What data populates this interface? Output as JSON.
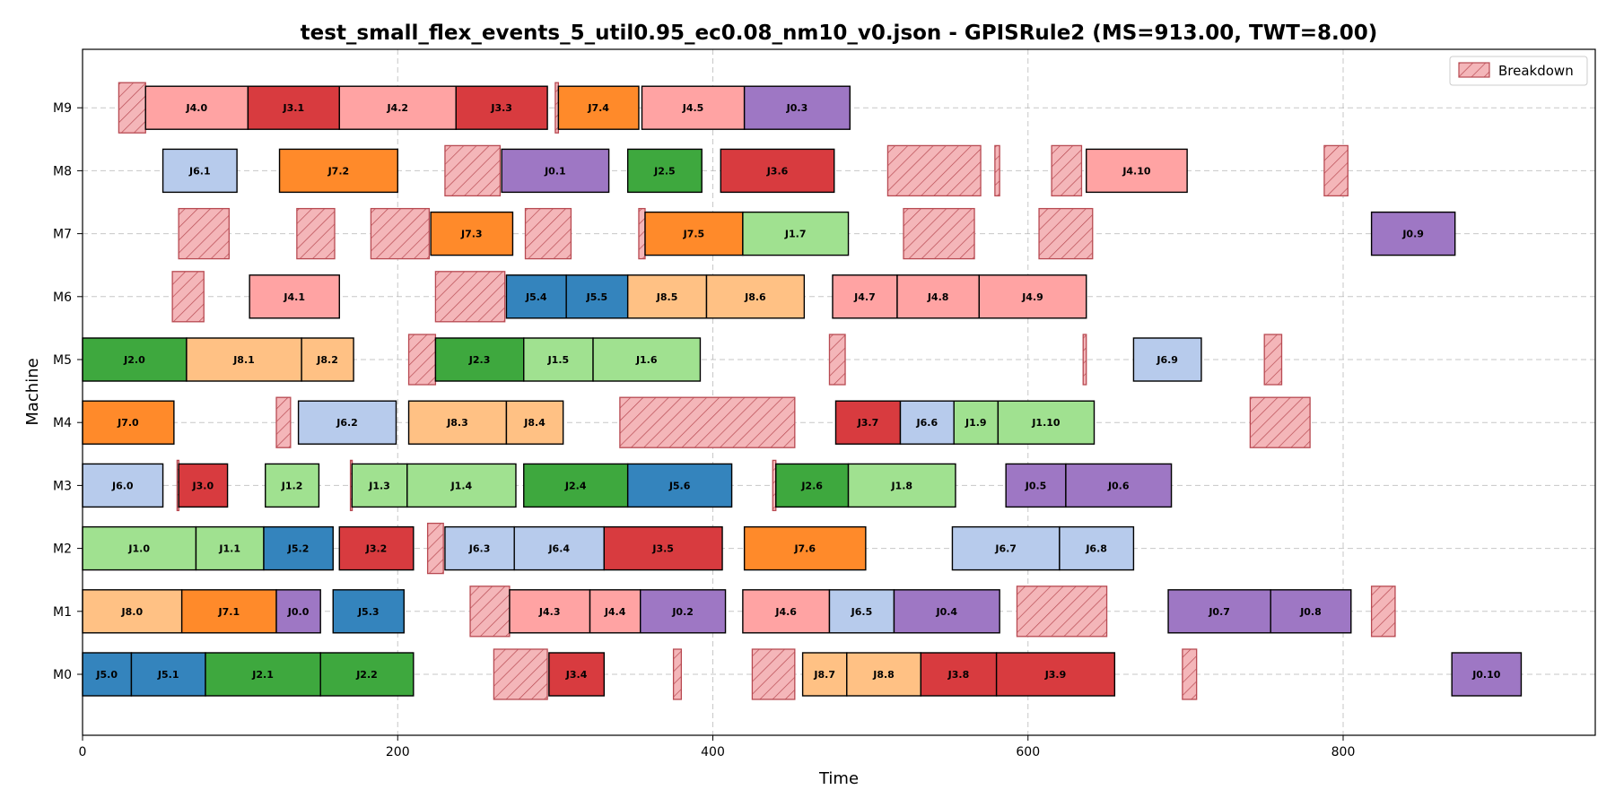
{
  "chart_data": {
    "type": "gantt",
    "title": "test_small_flex_events_5_util0.95_ec0.08_nm10_v0.json - GPISRule2 (MS=913.00, TWT=8.00)",
    "xlabel": "Time",
    "ylabel": "Machine",
    "xlim": [
      0,
      960
    ],
    "xticks": [
      0,
      200,
      400,
      600,
      800
    ],
    "machines": [
      "M0",
      "M1",
      "M2",
      "M3",
      "M4",
      "M5",
      "M6",
      "M7",
      "M8",
      "M9"
    ],
    "grid": true,
    "legend": {
      "position": "top-right",
      "entries": [
        "Breakdown"
      ]
    },
    "job_colors": {
      "J0": "#9e77c4",
      "J1": "#a0e190",
      "J2": "#3ea83e",
      "J3": "#d83b3f",
      "J4": "#ffa3a3",
      "J5": "#3484bd",
      "J6": "#b7cbec",
      "J7": "#ff8a2a",
      "J8": "#ffc184"
    },
    "breakdown_fill": "#f4b6b9",
    "breakdown_edge": "#b84a52",
    "operations": [
      {
        "m": 0,
        "label": "J5.0",
        "job": "J5",
        "start": 0,
        "end": 31
      },
      {
        "m": 0,
        "label": "J5.1",
        "job": "J5",
        "start": 31,
        "end": 78
      },
      {
        "m": 0,
        "label": "J2.1",
        "job": "J2",
        "start": 78,
        "end": 151
      },
      {
        "m": 0,
        "label": "J2.2",
        "job": "J2",
        "start": 151,
        "end": 210
      },
      {
        "m": 0,
        "label": "J3.4",
        "job": "J3",
        "start": 296,
        "end": 331
      },
      {
        "m": 0,
        "label": "J8.7",
        "job": "J8",
        "start": 457,
        "end": 485
      },
      {
        "m": 0,
        "label": "J8.8",
        "job": "J8",
        "start": 485,
        "end": 532
      },
      {
        "m": 0,
        "label": "J3.8",
        "job": "J3",
        "start": 532,
        "end": 580
      },
      {
        "m": 0,
        "label": "J3.9",
        "job": "J3",
        "start": 580,
        "end": 655
      },
      {
        "m": 0,
        "label": "J0.10",
        "job": "J0",
        "start": 869,
        "end": 913
      },
      {
        "m": 1,
        "label": "J8.0",
        "job": "J8",
        "start": 0,
        "end": 63
      },
      {
        "m": 1,
        "label": "J7.1",
        "job": "J7",
        "start": 63,
        "end": 123
      },
      {
        "m": 1,
        "label": "J0.0",
        "job": "J0",
        "start": 123,
        "end": 151
      },
      {
        "m": 1,
        "label": "J5.3",
        "job": "J5",
        "start": 159,
        "end": 204
      },
      {
        "m": 1,
        "label": "J4.3",
        "job": "J4",
        "start": 271,
        "end": 322
      },
      {
        "m": 1,
        "label": "J4.4",
        "job": "J4",
        "start": 322,
        "end": 354
      },
      {
        "m": 1,
        "label": "J0.2",
        "job": "J0",
        "start": 354,
        "end": 408
      },
      {
        "m": 1,
        "label": "J4.6",
        "job": "J4",
        "start": 419,
        "end": 474
      },
      {
        "m": 1,
        "label": "J6.5",
        "job": "J6",
        "start": 474,
        "end": 515
      },
      {
        "m": 1,
        "label": "J0.4",
        "job": "J0",
        "start": 515,
        "end": 582
      },
      {
        "m": 1,
        "label": "J0.7",
        "job": "J0",
        "start": 689,
        "end": 754
      },
      {
        "m": 1,
        "label": "J0.8",
        "job": "J0",
        "start": 754,
        "end": 805
      },
      {
        "m": 2,
        "label": "J1.0",
        "job": "J1",
        "start": 0,
        "end": 72
      },
      {
        "m": 2,
        "label": "J1.1",
        "job": "J1",
        "start": 72,
        "end": 115
      },
      {
        "m": 2,
        "label": "J5.2",
        "job": "J5",
        "start": 115,
        "end": 159
      },
      {
        "m": 2,
        "label": "J3.2",
        "job": "J3",
        "start": 163,
        "end": 210
      },
      {
        "m": 2,
        "label": "J6.3",
        "job": "J6",
        "start": 230,
        "end": 274
      },
      {
        "m": 2,
        "label": "J6.4",
        "job": "J6",
        "start": 274,
        "end": 331
      },
      {
        "m": 2,
        "label": "J3.5",
        "job": "J3",
        "start": 331,
        "end": 406
      },
      {
        "m": 2,
        "label": "J7.6",
        "job": "J7",
        "start": 420,
        "end": 497
      },
      {
        "m": 2,
        "label": "J6.7",
        "job": "J6",
        "start": 552,
        "end": 620
      },
      {
        "m": 2,
        "label": "J6.8",
        "job": "J6",
        "start": 620,
        "end": 667
      },
      {
        "m": 3,
        "label": "J6.0",
        "job": "J6",
        "start": 0,
        "end": 51
      },
      {
        "m": 3,
        "label": "J3.0",
        "job": "J3",
        "start": 61,
        "end": 92
      },
      {
        "m": 3,
        "label": "J1.2",
        "job": "J1",
        "start": 116,
        "end": 150
      },
      {
        "m": 3,
        "label": "J1.3",
        "job": "J1",
        "start": 171,
        "end": 206
      },
      {
        "m": 3,
        "label": "J1.4",
        "job": "J1",
        "start": 206,
        "end": 275
      },
      {
        "m": 3,
        "label": "J2.4",
        "job": "J2",
        "start": 280,
        "end": 346
      },
      {
        "m": 3,
        "label": "J5.6",
        "job": "J5",
        "start": 346,
        "end": 412
      },
      {
        "m": 3,
        "label": "J2.6",
        "job": "J2",
        "start": 440,
        "end": 486
      },
      {
        "m": 3,
        "label": "J1.8",
        "job": "J1",
        "start": 486,
        "end": 554
      },
      {
        "m": 3,
        "label": "J0.5",
        "job": "J0",
        "start": 586,
        "end": 624
      },
      {
        "m": 3,
        "label": "J0.6",
        "job": "J0",
        "start": 624,
        "end": 691
      },
      {
        "m": 4,
        "label": "J7.0",
        "job": "J7",
        "start": 0,
        "end": 58
      },
      {
        "m": 4,
        "label": "J6.2",
        "job": "J6",
        "start": 137,
        "end": 199
      },
      {
        "m": 4,
        "label": "J8.3",
        "job": "J8",
        "start": 207,
        "end": 269
      },
      {
        "m": 4,
        "label": "J8.4",
        "job": "J8",
        "start": 269,
        "end": 305
      },
      {
        "m": 4,
        "label": "J3.7",
        "job": "J3",
        "start": 478,
        "end": 519
      },
      {
        "m": 4,
        "label": "J6.6",
        "job": "J6",
        "start": 519,
        "end": 553
      },
      {
        "m": 4,
        "label": "J1.9",
        "job": "J1",
        "start": 553,
        "end": 581
      },
      {
        "m": 4,
        "label": "J1.10",
        "job": "J1",
        "start": 581,
        "end": 642
      },
      {
        "m": 5,
        "label": "J2.0",
        "job": "J2",
        "start": 0,
        "end": 66
      },
      {
        "m": 5,
        "label": "J8.1",
        "job": "J8",
        "start": 66,
        "end": 139
      },
      {
        "m": 5,
        "label": "J8.2",
        "job": "J8",
        "start": 139,
        "end": 172
      },
      {
        "m": 5,
        "label": "J2.3",
        "job": "J2",
        "start": 224,
        "end": 280
      },
      {
        "m": 5,
        "label": "J1.5",
        "job": "J1",
        "start": 280,
        "end": 324
      },
      {
        "m": 5,
        "label": "J1.6",
        "job": "J1",
        "start": 324,
        "end": 392
      },
      {
        "m": 5,
        "label": "J6.9",
        "job": "J6",
        "start": 667,
        "end": 710
      },
      {
        "m": 6,
        "label": "J4.1",
        "job": "J4",
        "start": 106,
        "end": 163
      },
      {
        "m": 6,
        "label": "J5.4",
        "job": "J5",
        "start": 269,
        "end": 307
      },
      {
        "m": 6,
        "label": "J5.5",
        "job": "J5",
        "start": 307,
        "end": 346
      },
      {
        "m": 6,
        "label": "J8.5",
        "job": "J8",
        "start": 346,
        "end": 396
      },
      {
        "m": 6,
        "label": "J8.6",
        "job": "J8",
        "start": 396,
        "end": 458
      },
      {
        "m": 6,
        "label": "J4.7",
        "job": "J4",
        "start": 476,
        "end": 517
      },
      {
        "m": 6,
        "label": "J4.8",
        "job": "J4",
        "start": 517,
        "end": 569
      },
      {
        "m": 6,
        "label": "J4.9",
        "job": "J4",
        "start": 569,
        "end": 637
      },
      {
        "m": 7,
        "label": "J7.3",
        "job": "J7",
        "start": 221,
        "end": 273
      },
      {
        "m": 7,
        "label": "J7.5",
        "job": "J7",
        "start": 357,
        "end": 419
      },
      {
        "m": 7,
        "label": "J1.7",
        "job": "J1",
        "start": 419,
        "end": 486
      },
      {
        "m": 7,
        "label": "J0.9",
        "job": "J0",
        "start": 818,
        "end": 871
      },
      {
        "m": 8,
        "label": "J6.1",
        "job": "J6",
        "start": 51,
        "end": 98
      },
      {
        "m": 8,
        "label": "J7.2",
        "job": "J7",
        "start": 125,
        "end": 200
      },
      {
        "m": 8,
        "label": "J0.1",
        "job": "J0",
        "start": 266,
        "end": 334
      },
      {
        "m": 8,
        "label": "J2.5",
        "job": "J2",
        "start": 346,
        "end": 393
      },
      {
        "m": 8,
        "label": "J3.6",
        "job": "J3",
        "start": 405,
        "end": 477
      },
      {
        "m": 8,
        "label": "J4.10",
        "job": "J4",
        "start": 637,
        "end": 701
      },
      {
        "m": 9,
        "label": "J4.0",
        "job": "J4",
        "start": 40,
        "end": 105
      },
      {
        "m": 9,
        "label": "J3.1",
        "job": "J3",
        "start": 105,
        "end": 163
      },
      {
        "m": 9,
        "label": "J4.2",
        "job": "J4",
        "start": 163,
        "end": 237
      },
      {
        "m": 9,
        "label": "J3.3",
        "job": "J3",
        "start": 237,
        "end": 295
      },
      {
        "m": 9,
        "label": "J7.4",
        "job": "J7",
        "start": 302,
        "end": 353
      },
      {
        "m": 9,
        "label": "J4.5",
        "job": "J4",
        "start": 355,
        "end": 420
      },
      {
        "m": 9,
        "label": "J0.3",
        "job": "J0",
        "start": 420,
        "end": 487
      }
    ],
    "breakdowns": [
      {
        "m": 0,
        "start": 261,
        "end": 295
      },
      {
        "m": 0,
        "start": 375,
        "end": 380
      },
      {
        "m": 0,
        "start": 425,
        "end": 452
      },
      {
        "m": 0,
        "start": 698,
        "end": 707
      },
      {
        "m": 1,
        "start": 246,
        "end": 271
      },
      {
        "m": 1,
        "start": 593,
        "end": 650
      },
      {
        "m": 1,
        "start": 818,
        "end": 833
      },
      {
        "m": 2,
        "start": 219,
        "end": 229
      },
      {
        "m": 3,
        "start": 60,
        "end": 61
      },
      {
        "m": 3,
        "start": 170,
        "end": 171
      },
      {
        "m": 3,
        "start": 438,
        "end": 440
      },
      {
        "m": 4,
        "start": 123,
        "end": 132
      },
      {
        "m": 4,
        "start": 341,
        "end": 452
      },
      {
        "m": 4,
        "start": 741,
        "end": 779
      },
      {
        "m": 5,
        "start": 207,
        "end": 224
      },
      {
        "m": 5,
        "start": 474,
        "end": 484
      },
      {
        "m": 5,
        "start": 635,
        "end": 637
      },
      {
        "m": 5,
        "start": 750,
        "end": 761
      },
      {
        "m": 6,
        "start": 57,
        "end": 77
      },
      {
        "m": 6,
        "start": 224,
        "end": 268
      },
      {
        "m": 7,
        "start": 61,
        "end": 93
      },
      {
        "m": 7,
        "start": 136,
        "end": 160
      },
      {
        "m": 7,
        "start": 183,
        "end": 220
      },
      {
        "m": 7,
        "start": 281,
        "end": 310
      },
      {
        "m": 7,
        "start": 353,
        "end": 357
      },
      {
        "m": 7,
        "start": 521,
        "end": 566
      },
      {
        "m": 7,
        "start": 607,
        "end": 641
      },
      {
        "m": 8,
        "start": 230,
        "end": 265
      },
      {
        "m": 8,
        "start": 511,
        "end": 570
      },
      {
        "m": 8,
        "start": 579,
        "end": 582
      },
      {
        "m": 8,
        "start": 615,
        "end": 634
      },
      {
        "m": 8,
        "start": 788,
        "end": 803
      },
      {
        "m": 9,
        "start": 23,
        "end": 40
      },
      {
        "m": 9,
        "start": 300,
        "end": 302
      }
    ]
  }
}
